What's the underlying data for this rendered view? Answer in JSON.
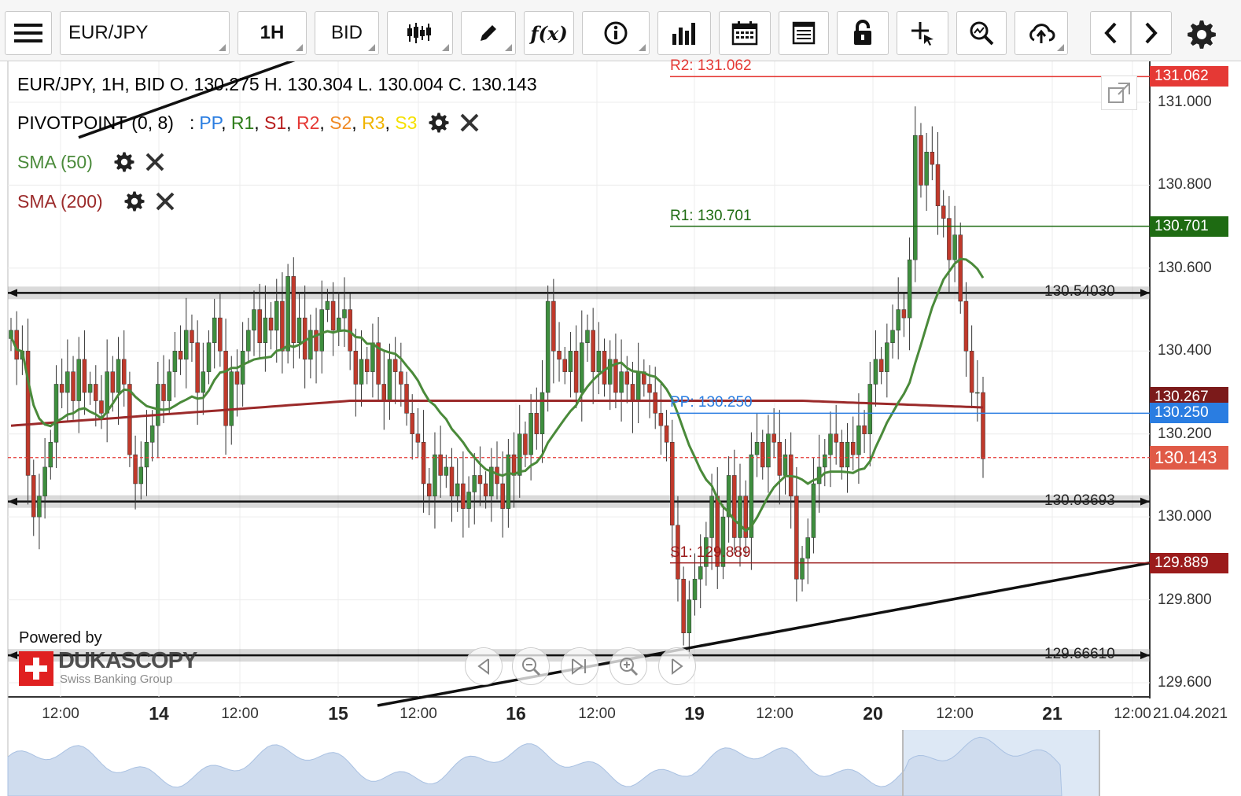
{
  "toolbar": {
    "menu_icon": "hamburger-menu-icon",
    "instrument": "EUR/JPY",
    "period": "1H",
    "side": "BID",
    "icons": [
      "candle-type-icon",
      "pencil-icon",
      "function-icon",
      "info-icon",
      "bar-chart-icon",
      "calendar-icon",
      "report-icon",
      "unlock-icon",
      "crosshair-icon",
      "zoom-chart-icon",
      "cloud-upload-icon",
      "chevron-left-icon",
      "chevron-right-icon",
      "gear-icon"
    ],
    "function_label": "f(x)"
  },
  "legend": {
    "ohlc": "EUR/JPY, 1H, BID   O. 130.275 H. 130.304 L. 130.004 C. 130.143",
    "pivot_name": "PIVOTPOINT (0, 8)",
    "pivot_sep": ":",
    "pivot_items": [
      {
        "label": "PP",
        "color": "#2a7de1"
      },
      {
        "label": "R1",
        "color": "#2e7d1a"
      },
      {
        "label": "S1",
        "color": "#b71c1c"
      },
      {
        "label": "R2",
        "color": "#e53935"
      },
      {
        "label": "S2",
        "color": "#f08a24"
      },
      {
        "label": "R3",
        "color": "#f0b400"
      },
      {
        "label": "S3",
        "color": "#f5e000"
      }
    ],
    "sma50": {
      "label": "SMA (50)",
      "color": "#4a8a3a"
    },
    "sma200": {
      "label": "SMA (200)",
      "color": "#9b2a2a"
    }
  },
  "levels": {
    "r2": {
      "label": "R2: 131.062",
      "tag": "131.062",
      "value": 131.062,
      "color": "#e53935"
    },
    "r1": {
      "label": "R1: 130.701",
      "tag": "130.701",
      "value": 130.701,
      "color": "#1e6b12"
    },
    "pp": {
      "label": "PP: 130.250",
      "tag": "130.250",
      "value": 130.25,
      "color": "#2a7de1"
    },
    "s1": {
      "label": "S1: 129.889",
      "tag": "129.889",
      "value": 129.889,
      "color": "#9b1b1b"
    },
    "last": {
      "tag": "130.143",
      "value": 130.143,
      "color": "#e05a47"
    },
    "hidden_tag": "130.267"
  },
  "hlines": [
    {
      "label": "130.54030",
      "value": 130.5403
    },
    {
      "label": "130.03693",
      "value": 130.03693
    },
    {
      "label": "129.66610",
      "value": 129.6661
    }
  ],
  "branding": {
    "powered": "Powered by",
    "name": "DUKASCOPY",
    "sub": "Swiss Banking Group"
  },
  "nav_icons": [
    "scroll-left-icon",
    "zoom-out-icon",
    "scroll-end-icon",
    "zoom-in-icon",
    "play-icon"
  ],
  "chart_data": {
    "type": "candlestick",
    "title": "EUR/JPY, 1H, BID",
    "ylim": [
      129.55,
      131.15
    ],
    "y_ticks": [
      "131.000",
      "130.800",
      "130.600",
      "130.400",
      "130.200",
      "130.000",
      "129.800",
      "129.600"
    ],
    "y_tick_values": [
      131.0,
      130.8,
      130.6,
      130.4,
      130.2,
      130.0,
      129.8,
      129.6
    ],
    "x_ticks": [
      {
        "label": "12:00",
        "big": false
      },
      {
        "label": "14",
        "big": true
      },
      {
        "label": "12:00",
        "big": false
      },
      {
        "label": "15",
        "big": true
      },
      {
        "label": "12:00",
        "big": false
      },
      {
        "label": "16",
        "big": true
      },
      {
        "label": "12:00",
        "big": false
      },
      {
        "label": "19",
        "big": true
      },
      {
        "label": "12:00",
        "big": false
      },
      {
        "label": "20",
        "big": true
      },
      {
        "label": "12:00",
        "big": false
      },
      {
        "label": "21",
        "big": true
      },
      {
        "label": "12:00",
        "big": false
      }
    ],
    "x_end_label": "21.04.2021",
    "close": [
      130.45,
      130.38,
      130.4,
      130.1,
      130.0,
      130.05,
      130.12,
      130.18,
      130.32,
      130.3,
      130.35,
      130.28,
      130.38,
      130.3,
      130.32,
      130.28,
      130.25,
      130.35,
      130.3,
      130.38,
      130.32,
      130.15,
      130.08,
      130.12,
      130.18,
      130.22,
      130.32,
      130.28,
      130.35,
      130.4,
      130.38,
      130.45,
      130.42,
      130.3,
      130.35,
      130.42,
      130.48,
      130.4,
      130.22,
      130.35,
      130.32,
      130.4,
      130.45,
      130.5,
      130.42,
      130.48,
      130.45,
      130.52,
      130.4,
      130.58,
      130.42,
      130.48,
      130.38,
      130.45,
      130.4,
      130.5,
      130.52,
      130.45,
      130.48,
      130.5,
      130.4,
      130.32,
      130.38,
      130.35,
      130.42,
      130.32,
      130.28,
      130.38,
      130.35,
      130.32,
      130.25,
      130.2,
      130.18,
      130.08,
      130.05,
      130.15,
      130.1,
      130.12,
      130.05,
      130.08,
      130.02,
      130.06,
      130.1,
      130.08,
      130.05,
      130.12,
      130.08,
      130.02,
      130.15,
      130.1,
      130.2,
      130.15,
      130.25,
      130.2,
      130.3,
      130.52,
      130.4,
      130.38,
      130.35,
      130.4,
      130.3,
      130.42,
      130.45,
      130.35,
      130.4,
      130.32,
      130.38,
      130.3,
      130.35,
      130.32,
      130.28,
      130.35,
      130.32,
      130.3,
      130.25,
      130.22,
      130.18,
      129.98,
      129.85,
      129.72,
      129.8,
      129.85,
      129.88,
      129.95,
      130.05,
      129.88,
      130.0,
      130.1,
      129.95,
      130.05,
      129.95,
      130.15,
      130.18,
      130.12,
      130.2,
      130.18,
      130.1,
      130.15,
      130.05,
      129.85,
      129.9,
      129.95,
      130.08,
      130.12,
      130.15,
      130.2,
      130.18,
      130.12,
      130.18,
      130.15,
      130.22,
      130.2,
      130.32,
      130.38,
      130.35,
      130.42,
      130.45,
      130.5,
      130.48,
      130.62,
      130.92,
      130.8,
      130.88,
      130.85,
      130.75,
      130.72,
      130.62,
      130.68,
      130.52,
      130.4,
      130.3,
      130.3,
      130.14
    ]
  }
}
